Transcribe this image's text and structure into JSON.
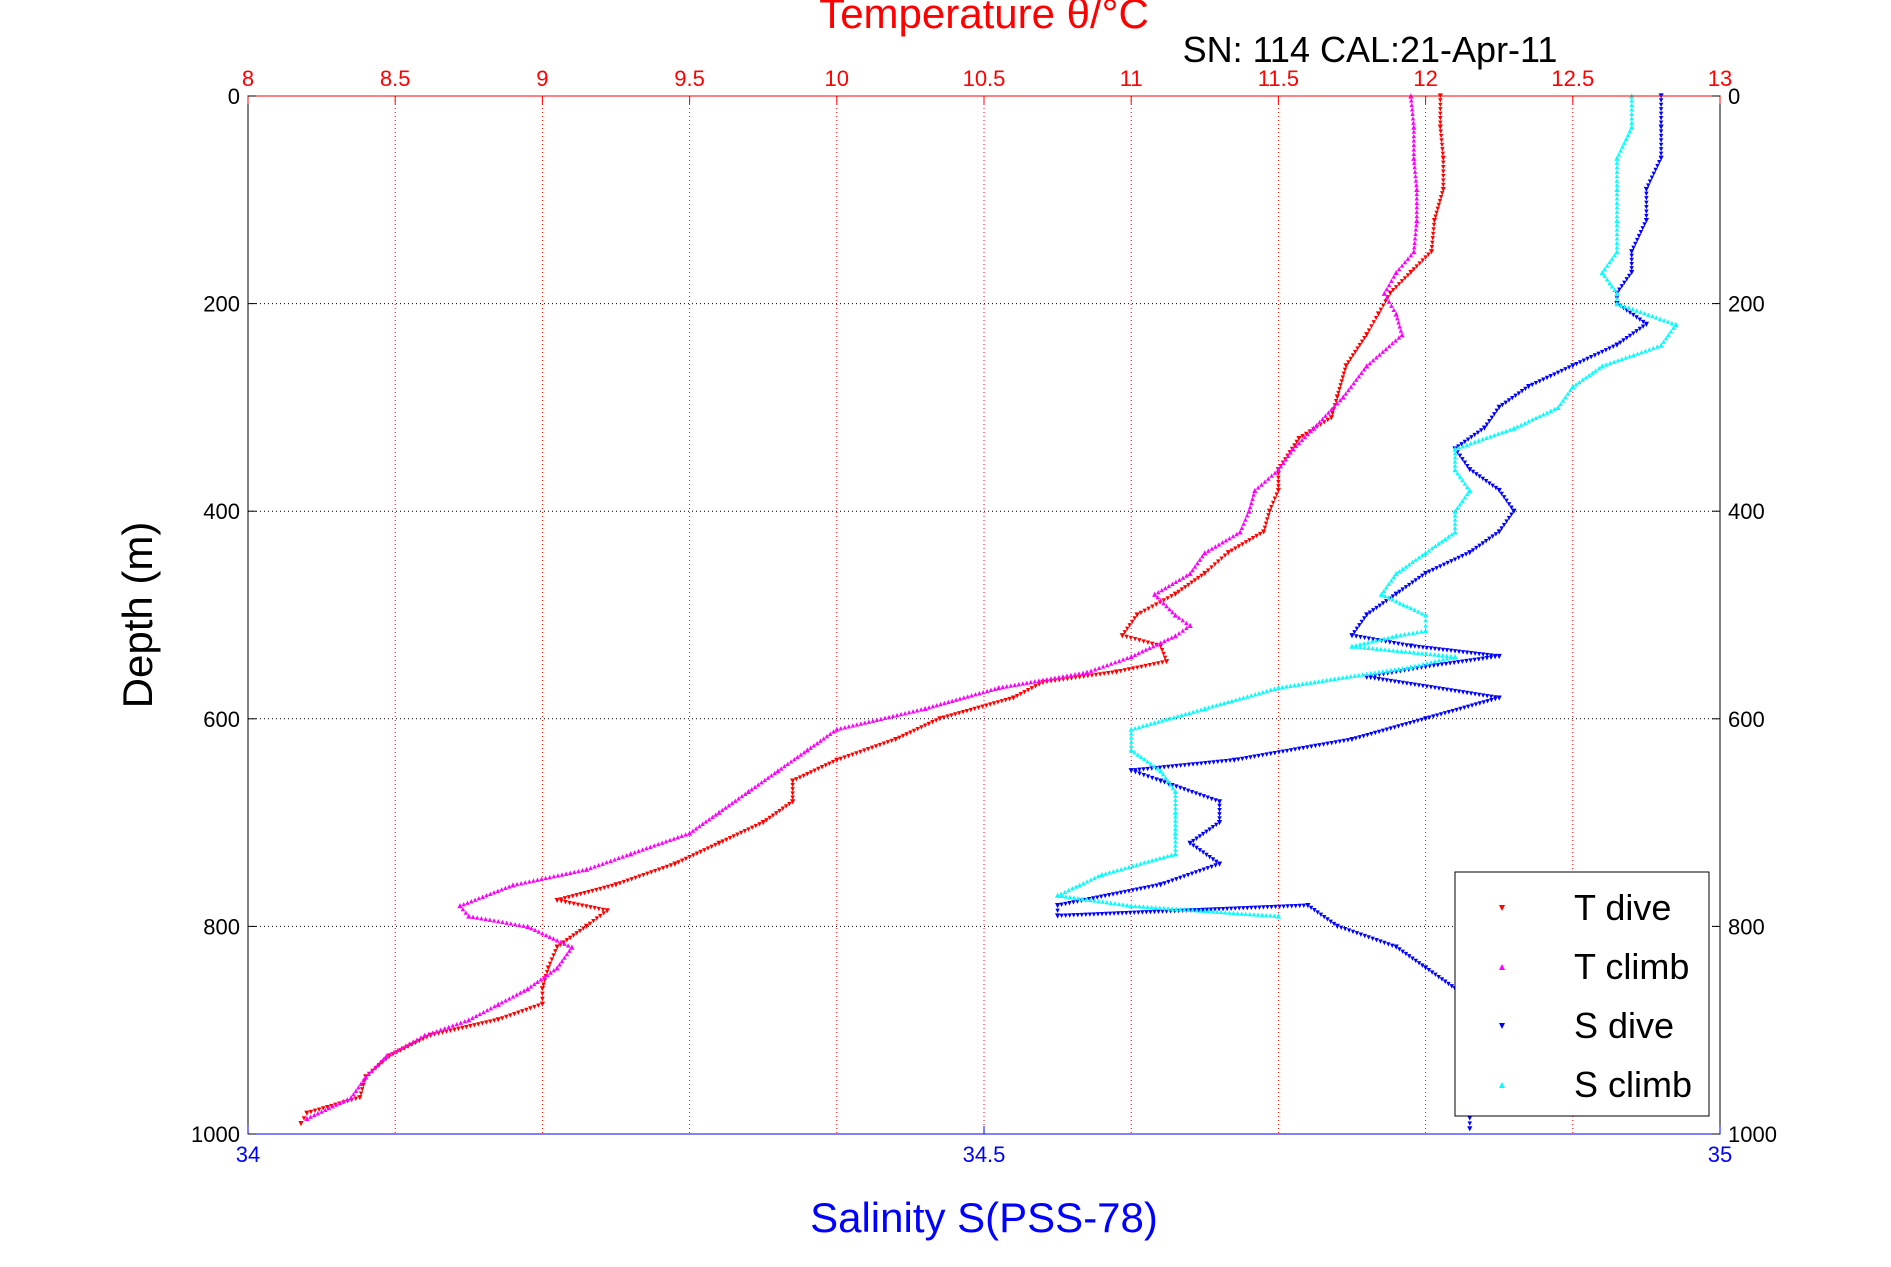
{
  "chart_data": {
    "type": "scatter",
    "title": "Temperature θ/°C",
    "subtitle": "SN: 114  CAL:21-Apr-11",
    "xlabel_top": "Temperature θ/°C",
    "xlabel_bottom": "Salinity S(PSS-78)",
    "ylabel": "Depth (m)",
    "x_top_ticks": [
      "8",
      "8.5",
      "9",
      "9.5",
      "10",
      "10.5",
      "11",
      "11.5",
      "12",
      "12.5",
      "13"
    ],
    "x_top_range": [
      8,
      13
    ],
    "x_bottom_ticks": [
      "34",
      "34.5",
      "35"
    ],
    "x_bottom_range": [
      34,
      35
    ],
    "y_ticks": [
      "0",
      "200",
      "400",
      "600",
      "800",
      "1000"
    ],
    "y_range": [
      0,
      1000
    ],
    "y_reversed": true,
    "grid": true,
    "legend_position": "bottom-right",
    "legend": [
      "T dive",
      "T climb",
      "S dive",
      "S climb"
    ],
    "colors": {
      "temperature_axis": "#ff0000",
      "salinity_axis": "#0000ff",
      "T_dive": "#ff0000",
      "T_climb": "#ff00ff",
      "S_dive": "#0000ff",
      "S_climb": "#00ffff"
    },
    "series": [
      {
        "name": "T dive",
        "axis": "temperature",
        "marker": "triangle-down",
        "points": [
          [
            12.05,
            0
          ],
          [
            12.05,
            30
          ],
          [
            12.06,
            60
          ],
          [
            12.06,
            90
          ],
          [
            12.03,
            120
          ],
          [
            12.02,
            150
          ],
          [
            11.95,
            170
          ],
          [
            11.88,
            190
          ],
          [
            11.84,
            210
          ],
          [
            11.8,
            230
          ],
          [
            11.73,
            260
          ],
          [
            11.7,
            290
          ],
          [
            11.68,
            310
          ],
          [
            11.57,
            330
          ],
          [
            11.5,
            360
          ],
          [
            11.5,
            380
          ],
          [
            11.47,
            400
          ],
          [
            11.45,
            420
          ],
          [
            11.33,
            440
          ],
          [
            11.25,
            460
          ],
          [
            11.15,
            480
          ],
          [
            11.02,
            500
          ],
          [
            10.97,
            520
          ],
          [
            11.1,
            530
          ],
          [
            11.12,
            545
          ],
          [
            10.95,
            555
          ],
          [
            10.7,
            565
          ],
          [
            10.6,
            580
          ],
          [
            10.35,
            600
          ],
          [
            10.2,
            620
          ],
          [
            10.0,
            640
          ],
          [
            9.85,
            660
          ],
          [
            9.85,
            680
          ],
          [
            9.75,
            700
          ],
          [
            9.6,
            720
          ],
          [
            9.45,
            740
          ],
          [
            9.25,
            760
          ],
          [
            9.05,
            775
          ],
          [
            9.22,
            785
          ],
          [
            9.15,
            800
          ],
          [
            9.05,
            820
          ],
          [
            9.02,
            840
          ],
          [
            9.0,
            860
          ],
          [
            9.0,
            875
          ],
          [
            8.85,
            890
          ],
          [
            8.62,
            905
          ],
          [
            8.48,
            925
          ],
          [
            8.4,
            945
          ],
          [
            8.38,
            965
          ],
          [
            8.2,
            980
          ],
          [
            8.18,
            990
          ]
        ]
      },
      {
        "name": "T climb",
        "axis": "temperature",
        "marker": "triangle-up",
        "points": [
          [
            11.95,
            0
          ],
          [
            11.96,
            30
          ],
          [
            11.96,
            60
          ],
          [
            11.97,
            90
          ],
          [
            11.97,
            120
          ],
          [
            11.96,
            150
          ],
          [
            11.9,
            170
          ],
          [
            11.86,
            190
          ],
          [
            11.9,
            210
          ],
          [
            11.92,
            230
          ],
          [
            11.8,
            260
          ],
          [
            11.72,
            290
          ],
          [
            11.62,
            320
          ],
          [
            11.55,
            340
          ],
          [
            11.5,
            360
          ],
          [
            11.42,
            380
          ],
          [
            11.4,
            400
          ],
          [
            11.37,
            420
          ],
          [
            11.25,
            440
          ],
          [
            11.2,
            460
          ],
          [
            11.08,
            480
          ],
          [
            11.15,
            500
          ],
          [
            11.2,
            510
          ],
          [
            11.15,
            520
          ],
          [
            11.0,
            540
          ],
          [
            10.85,
            555
          ],
          [
            10.55,
            570
          ],
          [
            10.3,
            590
          ],
          [
            10.0,
            610
          ],
          [
            9.9,
            630
          ],
          [
            9.8,
            650
          ],
          [
            9.7,
            670
          ],
          [
            9.6,
            690
          ],
          [
            9.5,
            710
          ],
          [
            9.3,
            730
          ],
          [
            9.15,
            745
          ],
          [
            8.9,
            760
          ],
          [
            8.72,
            780
          ],
          [
            8.75,
            790
          ],
          [
            8.95,
            800
          ],
          [
            9.1,
            820
          ],
          [
            9.05,
            840
          ],
          [
            8.95,
            860
          ],
          [
            8.85,
            875
          ],
          [
            8.75,
            890
          ],
          [
            8.6,
            905
          ],
          [
            8.47,
            925
          ],
          [
            8.4,
            945
          ],
          [
            8.35,
            965
          ],
          [
            8.2,
            985
          ]
        ]
      },
      {
        "name": "S dive",
        "axis": "salinity",
        "marker": "triangle-down",
        "points": [
          [
            34.96,
            0
          ],
          [
            34.96,
            30
          ],
          [
            34.96,
            60
          ],
          [
            34.95,
            90
          ],
          [
            34.95,
            120
          ],
          [
            34.94,
            150
          ],
          [
            34.94,
            170
          ],
          [
            34.93,
            190
          ],
          [
            34.93,
            200
          ],
          [
            34.95,
            220
          ],
          [
            34.93,
            240
          ],
          [
            34.9,
            260
          ],
          [
            34.87,
            280
          ],
          [
            34.85,
            300
          ],
          [
            34.84,
            320
          ],
          [
            34.82,
            340
          ],
          [
            34.83,
            360
          ],
          [
            34.85,
            380
          ],
          [
            34.86,
            400
          ],
          [
            34.85,
            420
          ],
          [
            34.83,
            440
          ],
          [
            34.8,
            460
          ],
          [
            34.78,
            480
          ],
          [
            34.76,
            500
          ],
          [
            34.75,
            520
          ],
          [
            34.79,
            530
          ],
          [
            34.85,
            540
          ],
          [
            34.8,
            550
          ],
          [
            34.76,
            560
          ],
          [
            34.85,
            580
          ],
          [
            34.8,
            600
          ],
          [
            34.75,
            620
          ],
          [
            34.67,
            640
          ],
          [
            34.6,
            650
          ],
          [
            34.62,
            660
          ],
          [
            34.66,
            680
          ],
          [
            34.66,
            700
          ],
          [
            34.64,
            720
          ],
          [
            34.66,
            740
          ],
          [
            34.62,
            760
          ],
          [
            34.55,
            780
          ],
          [
            34.55,
            790
          ],
          [
            34.72,
            780
          ],
          [
            34.74,
            800
          ],
          [
            34.78,
            820
          ],
          [
            34.8,
            840
          ],
          [
            34.82,
            860
          ],
          [
            34.84,
            880
          ],
          [
            34.85,
            900
          ],
          [
            34.85,
            920
          ],
          [
            34.84,
            940
          ],
          [
            34.84,
            960
          ],
          [
            34.83,
            980
          ],
          [
            34.83,
            995
          ]
        ]
      },
      {
        "name": "S climb",
        "axis": "salinity",
        "marker": "triangle-up",
        "points": [
          [
            34.94,
            0
          ],
          [
            34.94,
            30
          ],
          [
            34.93,
            60
          ],
          [
            34.93,
            90
          ],
          [
            34.93,
            120
          ],
          [
            34.93,
            150
          ],
          [
            34.92,
            170
          ],
          [
            34.93,
            190
          ],
          [
            34.93,
            200
          ],
          [
            34.97,
            220
          ],
          [
            34.96,
            240
          ],
          [
            34.92,
            260
          ],
          [
            34.9,
            280
          ],
          [
            34.89,
            300
          ],
          [
            34.86,
            320
          ],
          [
            34.82,
            340
          ],
          [
            34.82,
            360
          ],
          [
            34.83,
            380
          ],
          [
            34.82,
            400
          ],
          [
            34.82,
            420
          ],
          [
            34.8,
            440
          ],
          [
            34.78,
            460
          ],
          [
            34.77,
            480
          ],
          [
            34.8,
            500
          ],
          [
            34.8,
            515
          ],
          [
            34.78,
            520
          ],
          [
            34.75,
            530
          ],
          [
            34.82,
            540
          ],
          [
            34.79,
            550
          ],
          [
            34.7,
            570
          ],
          [
            34.65,
            590
          ],
          [
            34.6,
            610
          ],
          [
            34.6,
            630
          ],
          [
            34.62,
            650
          ],
          [
            34.63,
            670
          ],
          [
            34.63,
            690
          ],
          [
            34.63,
            710
          ],
          [
            34.63,
            730
          ],
          [
            34.58,
            750
          ],
          [
            34.55,
            770
          ],
          [
            34.6,
            780
          ],
          [
            34.7,
            790
          ]
        ]
      }
    ]
  }
}
